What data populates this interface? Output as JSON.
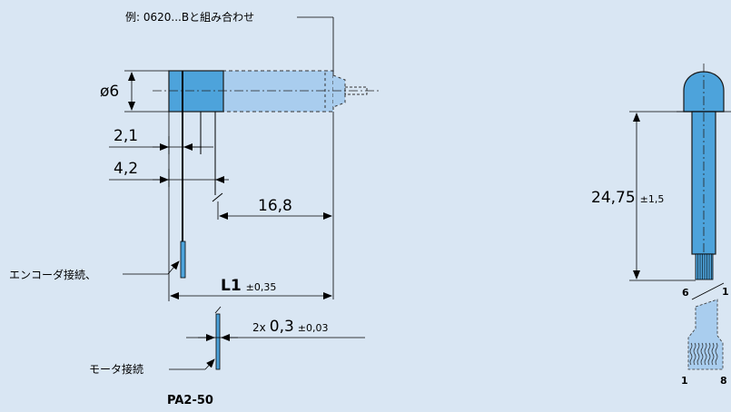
{
  "note_example": "例: 0620...Bと組み合わせ",
  "dim_diameter": "ø6",
  "dim_2_1": "2,1",
  "dim_4_2": "4,2",
  "dim_16_8": "16,8",
  "dim_L1": "L1",
  "dim_L1_tol": "±0,35",
  "dim_thickness_prefix": "2x",
  "dim_thickness": "0,3",
  "dim_thickness_tol": "±0,03",
  "label_encoder": "エンコーダ接続、",
  "label_motor": "モータ接続",
  "part_name": "PA2-50",
  "dim_length": "24,75",
  "dim_length_tol": "±1,5",
  "pin_top_left": "6",
  "pin_top_right": "1",
  "pin_bottom_left": "1",
  "pin_bottom_right": "8",
  "colors": {
    "background": "#d9e6f3",
    "body_blue": "#4da3db",
    "ghost_blue": "#a9cdee",
    "line": "#000000"
  }
}
